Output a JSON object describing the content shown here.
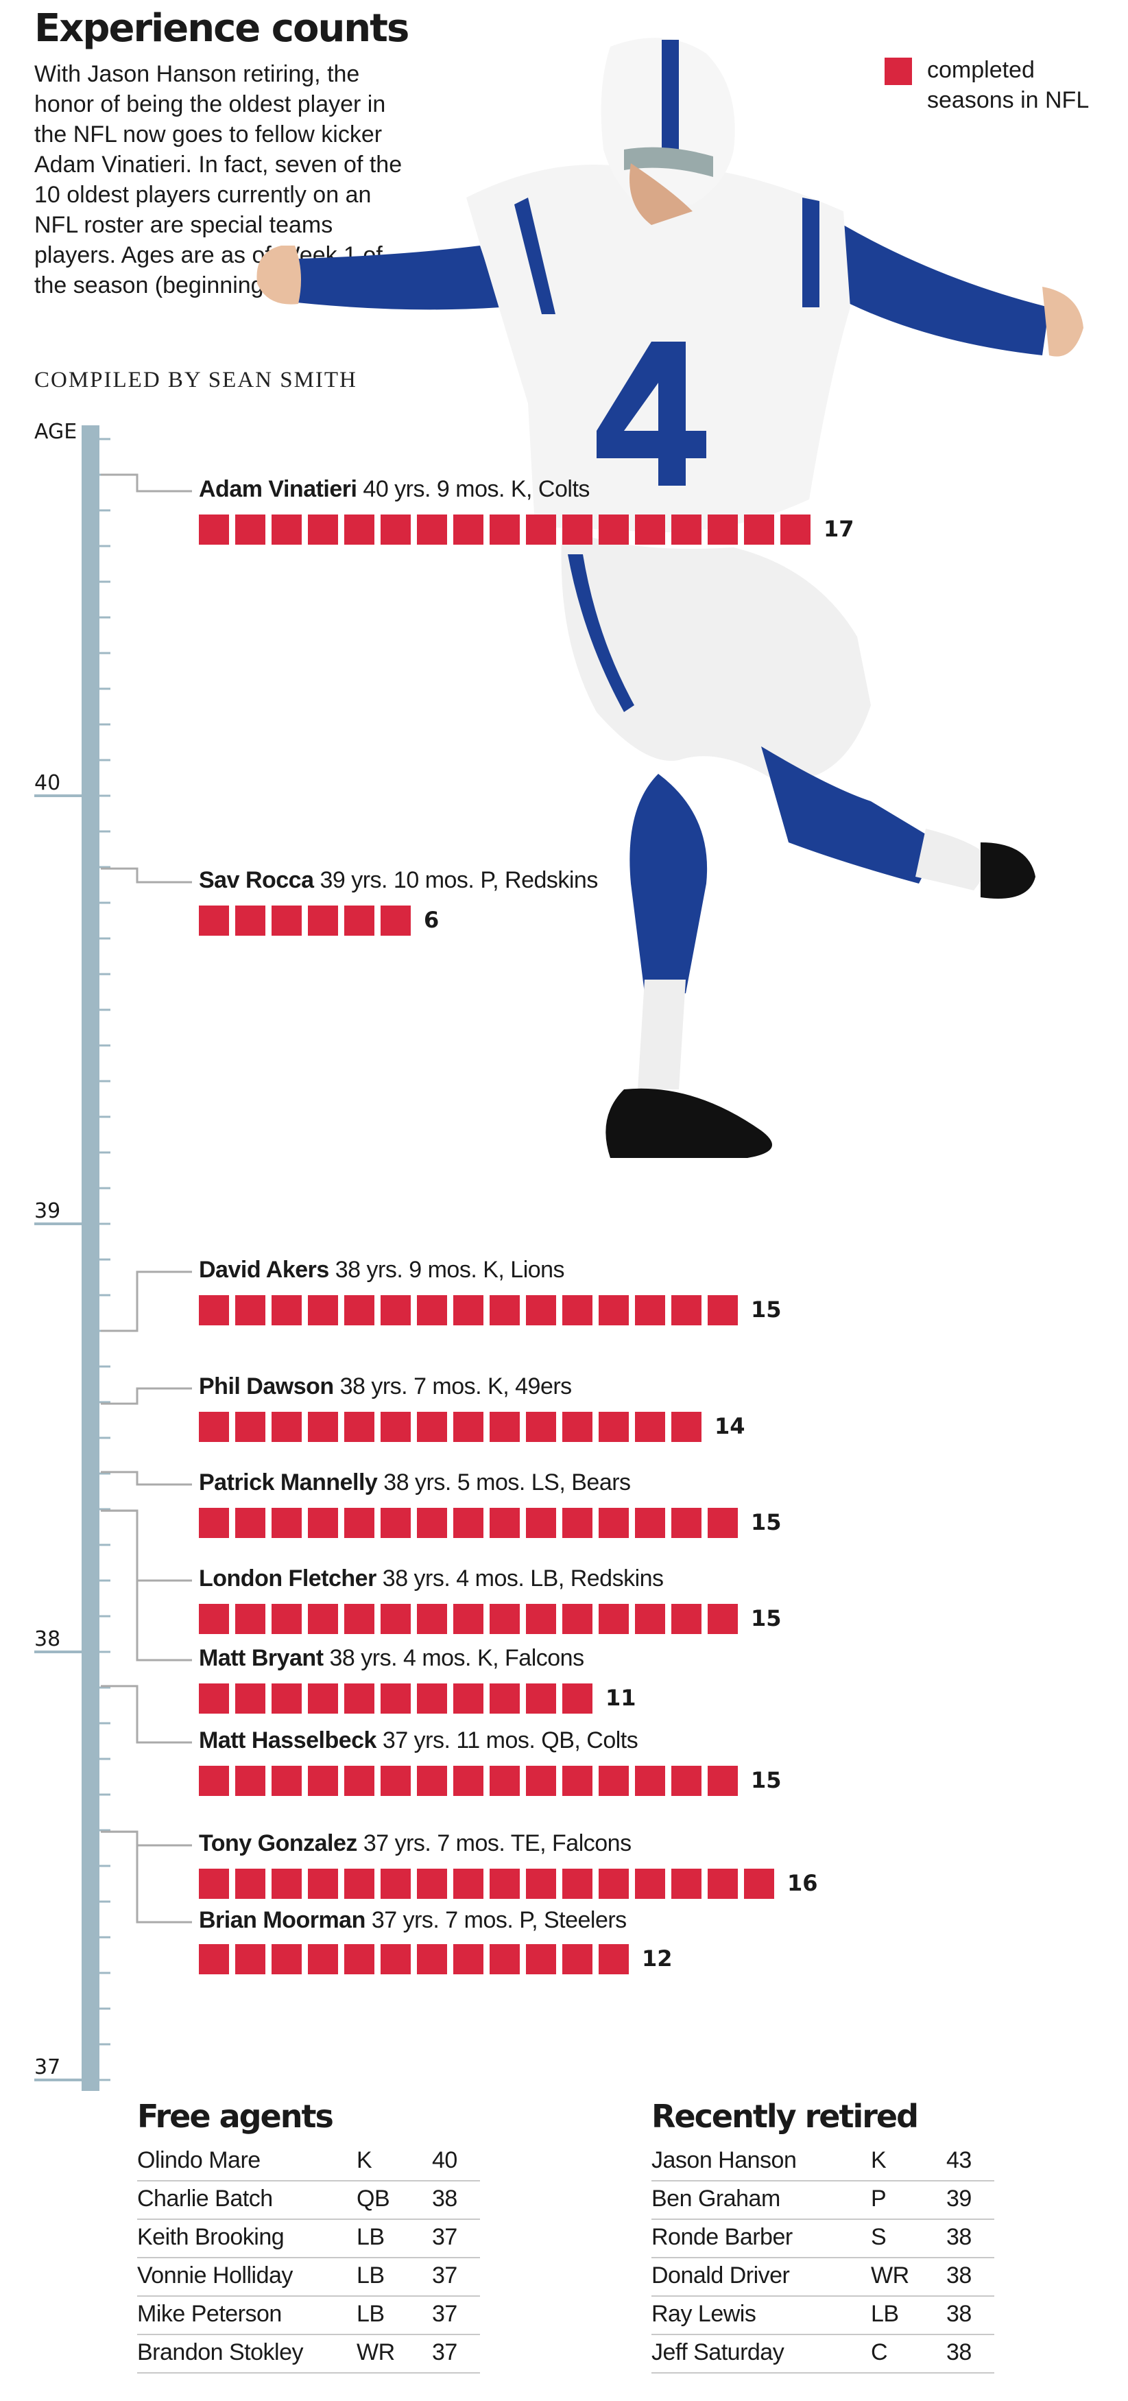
{
  "title": "Experience counts",
  "intro": "With Jason Hanson retiring, the honor of being the oldest player in the NFL now goes to fellow kicker Adam Vinatieri. In fact, seven of the 10 oldest players currently on an NFL roster are special teams players. Ages are as of Week 1 of the season (beginning Sept. 5).",
  "credit": "COMPILED BY SEAN SMITH",
  "legend": "completed seasons in NFL",
  "colors": {
    "bar": "#d9263f",
    "axis": "#9fb8c4",
    "connector": "#aaaaaa",
    "text": "#1a1a1a"
  },
  "chart_data": {
    "type": "bar",
    "axis_label": "AGE",
    "age_ticks": [
      "40",
      "39",
      "38",
      "37"
    ],
    "age_range": [
      37,
      41.25
    ],
    "series_label": "completed seasons in NFL",
    "players": [
      {
        "name": "Adam Vinatieri",
        "detail": "40 yrs. 9 mos. K, Colts",
        "age": 40.75,
        "seasons": 17
      },
      {
        "name": "Sav Rocca",
        "detail": "39 yrs. 10 mos. P, Redskins",
        "age": 39.83,
        "seasons": 6
      },
      {
        "name": "David Akers",
        "detail": "38 yrs. 9 mos.  K, Lions",
        "age": 38.75,
        "seasons": 15
      },
      {
        "name": "Phil Dawson",
        "detail": "38 yrs. 7 mos. K, 49ers",
        "age": 38.58,
        "seasons": 14
      },
      {
        "name": "Patrick Mannelly",
        "detail": "38 yrs. 5 mos. LS, Bears",
        "age": 38.42,
        "seasons": 15
      },
      {
        "name": "London Fletcher",
        "detail": "38 yrs. 4 mos. LB, Redskins",
        "age": 38.33,
        "seasons": 15
      },
      {
        "name": "Matt Bryant",
        "detail": "38 yrs. 4 mos. K, Falcons",
        "age": 38.33,
        "seasons": 11
      },
      {
        "name": "Matt Hasselbeck",
        "detail": "37 yrs. 11 mos. QB, Colts",
        "age": 37.92,
        "seasons": 15
      },
      {
        "name": "Tony Gonzalez",
        "detail": "37 yrs. 7 mos. TE, Falcons",
        "age": 37.58,
        "seasons": 16
      },
      {
        "name": "Brian Moorman",
        "detail": "37 yrs. 7 mos. P, Steelers",
        "age": 37.58,
        "seasons": 12
      }
    ]
  },
  "free_agents": {
    "title": "Free agents",
    "rows": [
      [
        "Olindo Mare",
        "K",
        "40"
      ],
      [
        "Charlie Batch",
        "QB",
        "38"
      ],
      [
        "Keith Brooking",
        "LB",
        "37"
      ],
      [
        "Vonnie Holliday",
        "LB",
        "37"
      ],
      [
        "Mike Peterson",
        "LB",
        "37"
      ],
      [
        "Brandon Stokley",
        "WR",
        "37"
      ]
    ]
  },
  "recently_retired": {
    "title": "Recently retired",
    "rows": [
      [
        "Jason Hanson",
        "K",
        "43"
      ],
      [
        "Ben Graham",
        "P",
        "39"
      ],
      [
        "Ronde Barber",
        "S",
        "38"
      ],
      [
        "Donald Driver",
        "WR",
        "38"
      ],
      [
        "Ray Lewis",
        "LB",
        "38"
      ],
      [
        "Jeff Saturday",
        "C",
        "38"
      ]
    ]
  }
}
